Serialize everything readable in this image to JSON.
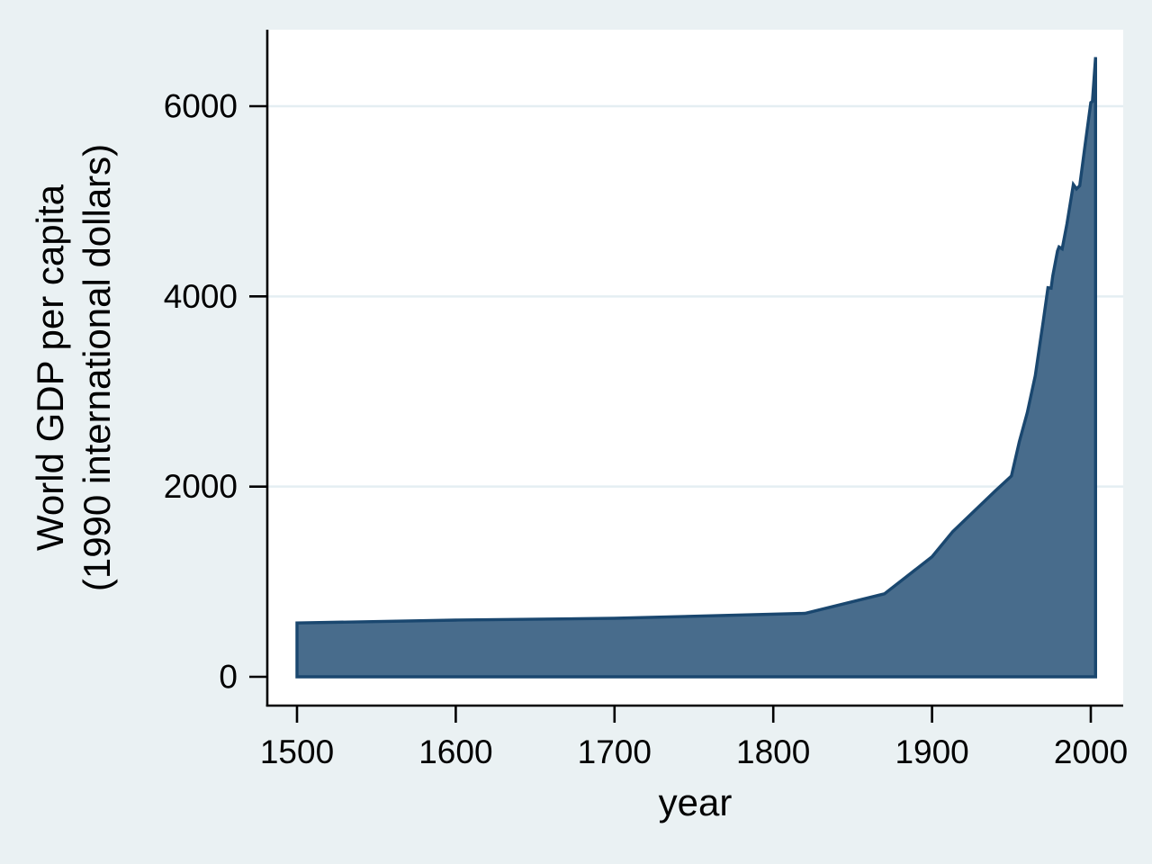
{
  "chart_data": {
    "type": "area",
    "title": "",
    "xlabel": "year",
    "ylabel_lines": [
      "World GDP per capita",
      "(1990 international dollars)"
    ],
    "x_ticks": [
      1500,
      1600,
      1700,
      1800,
      1900,
      2000
    ],
    "y_ticks": [
      0,
      2000,
      4000,
      6000
    ],
    "xlim": [
      1500,
      2003
    ],
    "ylim": [
      0,
      6600
    ],
    "grid": "horizontal gridlines at 2000/4000/6000 only, pale blue on white plot area",
    "legend_position": "none",
    "series": [
      {
        "name": "World GDP per capita (1990 international dollars)",
        "points": [
          [
            1500,
            566
          ],
          [
            1600,
            596
          ],
          [
            1700,
            615
          ],
          [
            1820,
            667
          ],
          [
            1870,
            873
          ],
          [
            1900,
            1262
          ],
          [
            1913,
            1526
          ],
          [
            1940,
            1958
          ],
          [
            1950,
            2111
          ],
          [
            1955,
            2473
          ],
          [
            1960,
            2777
          ],
          [
            1965,
            3167
          ],
          [
            1970,
            3736
          ],
          [
            1973,
            4091
          ],
          [
            1975,
            4086
          ],
          [
            1976,
            4213
          ],
          [
            1979,
            4478
          ],
          [
            1980,
            4520
          ],
          [
            1982,
            4500
          ],
          [
            1985,
            4763
          ],
          [
            1989,
            5177
          ],
          [
            1991,
            5130
          ],
          [
            1993,
            5164
          ],
          [
            1996,
            5538
          ],
          [
            2000,
            6038
          ],
          [
            2001,
            6049
          ],
          [
            2003,
            6516
          ]
        ]
      }
    ],
    "colors": {
      "background": "#eaf1f3",
      "plot_background": "#ffffff",
      "gridline": "#e4eef2",
      "area_fill": "#486c8c",
      "area_stroke": "#1a476f",
      "axis": "#000000",
      "text": "#000000"
    }
  }
}
